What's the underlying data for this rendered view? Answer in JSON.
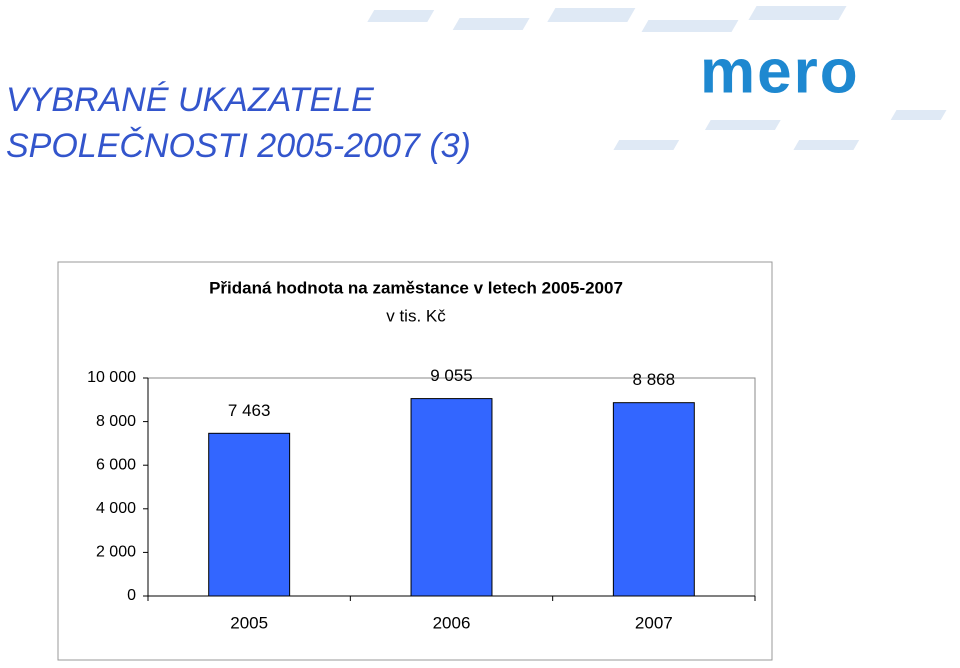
{
  "header": {
    "title_lines": [
      "VYBRANÉ UKAZATELE",
      "SPOLEČNOSTI 2005-2007 (3)"
    ],
    "logo": "mero"
  },
  "chart_data": {
    "type": "bar",
    "title": "Přidaná hodnota na zaměstance v letech 2005-2007",
    "subtitle": "v tis. Kč",
    "categories": [
      "2005",
      "2006",
      "2007"
    ],
    "values": [
      7463,
      9055,
      8868
    ],
    "value_labels": [
      "7 463",
      "9 055",
      "8 868"
    ],
    "color": "#3366ff",
    "ylim": [
      0,
      10000
    ],
    "yticks": [
      0,
      {
        "value": 2000,
        "label": "2 000"
      },
      {
        "value": 4000,
        "label": "4 000"
      },
      {
        "value": 6000,
        "label": "6 000"
      },
      {
        "value": 8000,
        "label": "8 000"
      },
      {
        "value": 10000,
        "label": "10 000"
      }
    ],
    "grid": false
  }
}
